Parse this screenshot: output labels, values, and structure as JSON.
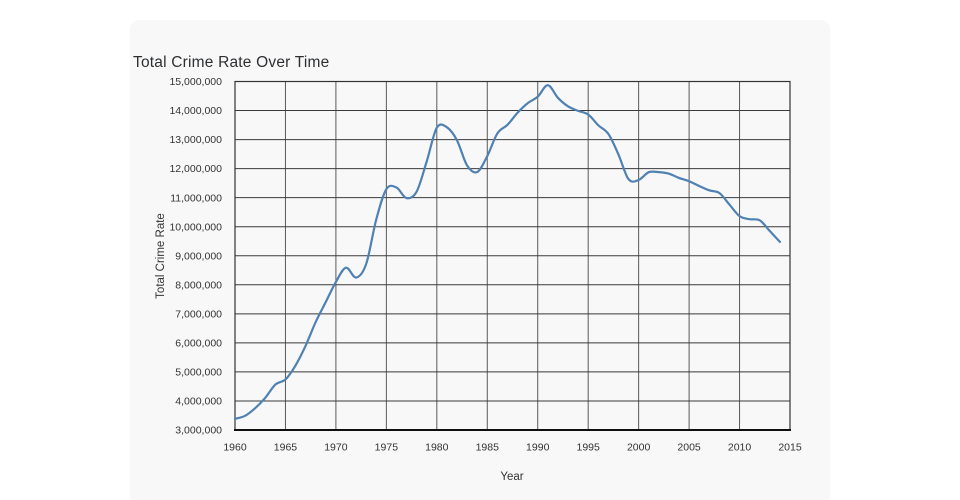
{
  "page": {
    "background_color": "#ffffff",
    "card_background_color": "#f8f8f9"
  },
  "chart_data": {
    "type": "line",
    "title": "Total Crime Rate Over Time",
    "xlabel": "Year",
    "ylabel": "Total Crime Rate",
    "xlim": [
      1960,
      2015
    ],
    "ylim": [
      3000000,
      15000000
    ],
    "x_ticks": [
      1960,
      1965,
      1970,
      1975,
      1980,
      1985,
      1990,
      1995,
      2000,
      2005,
      2010,
      2015
    ],
    "y_ticks": [
      3000000,
      4000000,
      5000000,
      6000000,
      7000000,
      8000000,
      9000000,
      10000000,
      11000000,
      12000000,
      13000000,
      14000000,
      15000000
    ],
    "grid": true,
    "legend": false,
    "smooth": true,
    "line_color": "#4f81b2",
    "grid_color_h": "#3a3a3a",
    "grid_color_v": "#5a5a5a",
    "border_color": "#333333",
    "axis_color": "#0f0f0f",
    "label_color": "#333333",
    "x": [
      1960,
      1961,
      1962,
      1963,
      1964,
      1965,
      1966,
      1967,
      1968,
      1969,
      1970,
      1971,
      1972,
      1973,
      1974,
      1975,
      1976,
      1977,
      1978,
      1979,
      1980,
      1981,
      1982,
      1983,
      1984,
      1985,
      1986,
      1987,
      1988,
      1989,
      1990,
      1991,
      1992,
      1993,
      1994,
      1995,
      1996,
      1997,
      1998,
      1999,
      2000,
      2001,
      2002,
      2003,
      2004,
      2005,
      2006,
      2007,
      2008,
      2009,
      2010,
      2011,
      2012,
      2013,
      2014
    ],
    "y": [
      3384200,
      3488000,
      3752200,
      4109500,
      4564600,
      4739400,
      5223500,
      5903400,
      6720200,
      7410900,
      8098000,
      8588200,
      8248800,
      8718100,
      10253400,
      11292400,
      11349700,
      10984500,
      11209000,
      12249500,
      13408300,
      13423800,
      12974400,
      12108600,
      11881800,
      12431400,
      13211900,
      13508700,
      13923100,
      14251400,
      14475600,
      14872900,
      14438200,
      14144800,
      13989500,
      13862700,
      13493900,
      13194600,
      12485700,
      11634400,
      11608100,
      11876700,
      11878954,
      11826538,
      11679474,
      11565499,
      11401511,
      11251828,
      11160543,
      10762956,
      10363873,
      10258774,
      10219059,
      9850445,
      9475816
    ]
  }
}
